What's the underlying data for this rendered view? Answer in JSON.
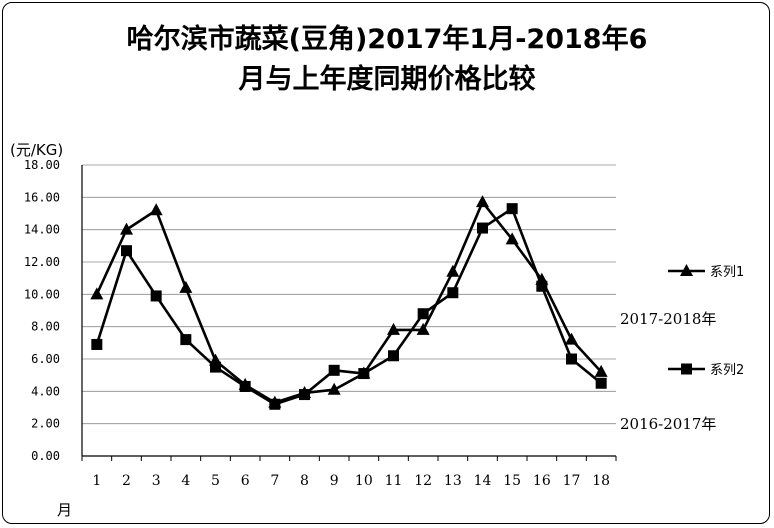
{
  "chart_data": {
    "type": "line",
    "title_line1": "哈尔滨市蔬菜(豆角)2017年1月-2018年6",
    "title_line2": "月与上年度同期价格比较",
    "ylabel": "(元/KG)",
    "xlabel": "月",
    "ylim": [
      0,
      18
    ],
    "y_ticks": [
      "0.00",
      "2.00",
      "4.00",
      "6.00",
      "8.00",
      "10.00",
      "12.00",
      "14.00",
      "16.00",
      "18.00"
    ],
    "categories": [
      "1",
      "2",
      "3",
      "4",
      "5",
      "6",
      "7",
      "8",
      "9",
      "10",
      "11",
      "12",
      "13",
      "14",
      "15",
      "16",
      "17",
      "18"
    ],
    "grid": true,
    "legend_position": "right",
    "series": [
      {
        "name": "系列1",
        "marker": "triangle",
        "values": [
          10.0,
          14.0,
          15.2,
          10.4,
          5.9,
          4.4,
          3.3,
          3.9,
          4.1,
          5.1,
          7.8,
          7.8,
          11.4,
          15.7,
          13.4,
          10.9,
          7.2,
          5.2
        ]
      },
      {
        "name": "系列2",
        "marker": "square",
        "values": [
          6.9,
          12.7,
          9.9,
          7.2,
          5.5,
          4.3,
          3.2,
          3.8,
          5.3,
          5.1,
          6.2,
          8.8,
          10.1,
          14.1,
          15.3,
          10.5,
          6.0,
          4.5
        ]
      }
    ],
    "annotations": [
      "2017-2018年",
      "2016-2017年"
    ],
    "color": "#000000"
  }
}
